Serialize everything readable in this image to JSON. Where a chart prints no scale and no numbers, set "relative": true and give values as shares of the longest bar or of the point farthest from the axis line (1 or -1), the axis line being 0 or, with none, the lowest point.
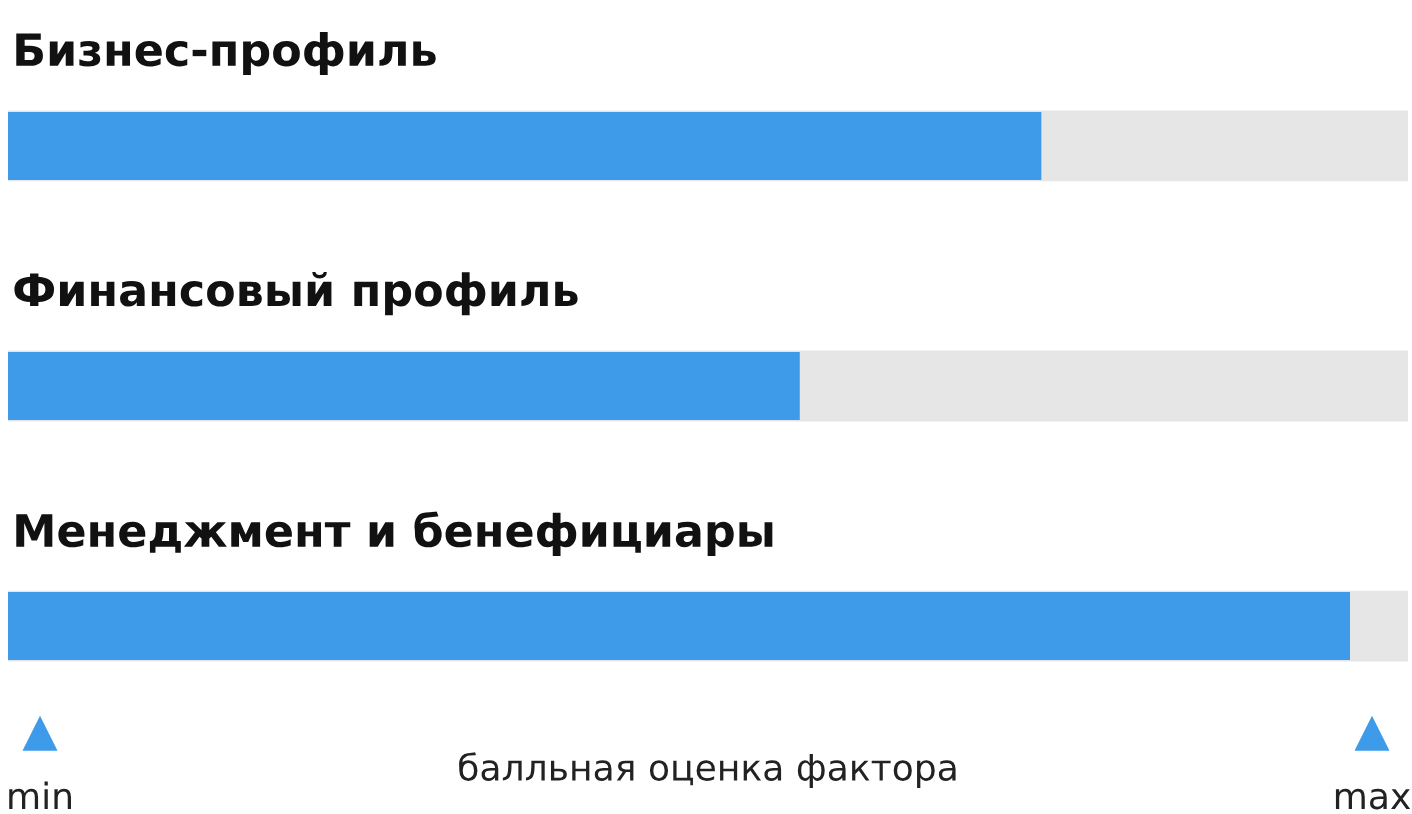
{
  "chart_data": {
    "type": "bar",
    "orientation": "horizontal",
    "relative": true,
    "categories": [
      "Бизнес-профиль",
      "Финансовый профиль",
      "Менеджмент и бенефициары"
    ],
    "values": [
      0.77,
      0.59,
      1
    ],
    "color": "#3d9be9",
    "xlabel": "балльная оценка фактора",
    "annotations": [
      "min",
      "max"
    ]
  }
}
